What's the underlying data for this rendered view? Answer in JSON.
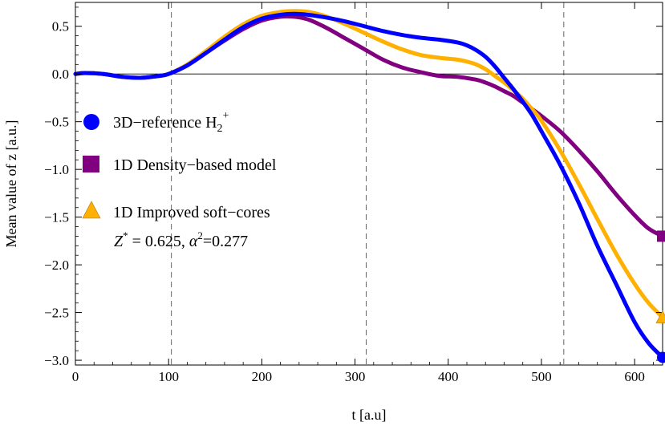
{
  "chart_data": {
    "type": "line",
    "xlabel": "t  [a.u]",
    "ylabel": "Mean value  of  z  [a.u.]",
    "xlim": [
      0,
      630
    ],
    "ylim": [
      -3.05,
      0.75
    ],
    "xticks": [
      0,
      100,
      200,
      300,
      400,
      500,
      600
    ],
    "yticks": [
      -3.0,
      -2.5,
      -2.0,
      -1.5,
      -1.0,
      -0.5,
      0.0,
      0.5
    ],
    "ytick_labels": [
      "−3.0",
      "−2.5",
      "−2.0",
      "−1.5",
      "−1.0",
      "−0.5",
      "0.0",
      "0.5"
    ],
    "vlines": [
      103,
      312,
      524
    ],
    "hline": 0,
    "grid": false,
    "legend_position": "left-center",
    "series": [
      {
        "name": "3D−reference H",
        "sub": "2",
        "sup": "+",
        "color": "#0000ff",
        "marker": "circle",
        "x": [
          0,
          10,
          30,
          50,
          70,
          90,
          100,
          120,
          140,
          160,
          180,
          200,
          220,
          235,
          250,
          270,
          290,
          310,
          330,
          350,
          370,
          390,
          410,
          420,
          430,
          440,
          450,
          460,
          470,
          480,
          490,
          500,
          520,
          540,
          560,
          580,
          600,
          615,
          630
        ],
        "y": [
          0,
          0.01,
          0,
          -0.03,
          -0.04,
          -0.02,
          0,
          0.09,
          0.22,
          0.36,
          0.49,
          0.58,
          0.62,
          0.63,
          0.62,
          0.59,
          0.55,
          0.5,
          0.45,
          0.41,
          0.38,
          0.36,
          0.33,
          0.3,
          0.25,
          0.18,
          0.08,
          -0.04,
          -0.16,
          -0.29,
          -0.43,
          -0.6,
          -0.95,
          -1.35,
          -1.8,
          -2.2,
          -2.6,
          -2.82,
          -2.97
        ]
      },
      {
        "name": "1D Density−based model",
        "color": "#800080",
        "marker": "square",
        "x": [
          0,
          10,
          30,
          50,
          70,
          90,
          100,
          120,
          140,
          160,
          180,
          200,
          220,
          235,
          250,
          270,
          290,
          310,
          330,
          350,
          370,
          390,
          410,
          430,
          440,
          450,
          460,
          470,
          480,
          500,
          520,
          540,
          560,
          580,
          600,
          615,
          630
        ],
        "y": [
          0,
          0.01,
          0,
          -0.03,
          -0.04,
          -0.02,
          0,
          0.09,
          0.22,
          0.35,
          0.47,
          0.56,
          0.6,
          0.6,
          0.57,
          0.48,
          0.37,
          0.26,
          0.15,
          0.07,
          0.02,
          -0.02,
          -0.03,
          -0.06,
          -0.09,
          -0.13,
          -0.18,
          -0.23,
          -0.3,
          -0.44,
          -0.6,
          -0.8,
          -1.02,
          -1.26,
          -1.48,
          -1.62,
          -1.7
        ]
      },
      {
        "name": "1D Improved soft−cores",
        "color": "#ffb000",
        "marker": "triangle",
        "x": [
          0,
          10,
          30,
          50,
          70,
          90,
          100,
          120,
          140,
          160,
          180,
          200,
          220,
          235,
          250,
          270,
          290,
          310,
          330,
          350,
          370,
          390,
          410,
          420,
          430,
          440,
          450,
          460,
          470,
          480,
          490,
          500,
          520,
          540,
          560,
          580,
          600,
          615,
          630
        ],
        "y": [
          0,
          0.01,
          0,
          -0.03,
          -0.04,
          -0.02,
          0,
          0.1,
          0.24,
          0.39,
          0.52,
          0.61,
          0.65,
          0.66,
          0.65,
          0.6,
          0.52,
          0.43,
          0.34,
          0.26,
          0.2,
          0.17,
          0.15,
          0.13,
          0.1,
          0.05,
          -0.02,
          -0.09,
          -0.17,
          -0.26,
          -0.37,
          -0.49,
          -0.8,
          -1.15,
          -1.52,
          -1.88,
          -2.2,
          -2.4,
          -2.55
        ]
      }
    ],
    "annotation": {
      "text": "Z* = 0.625, α²=0.277",
      "z": "Z",
      "z_sup": "*",
      "z_value": " = 0.625, ",
      "alpha": "α",
      "alpha_sup": "2",
      "alpha_value": "=0.277"
    }
  }
}
